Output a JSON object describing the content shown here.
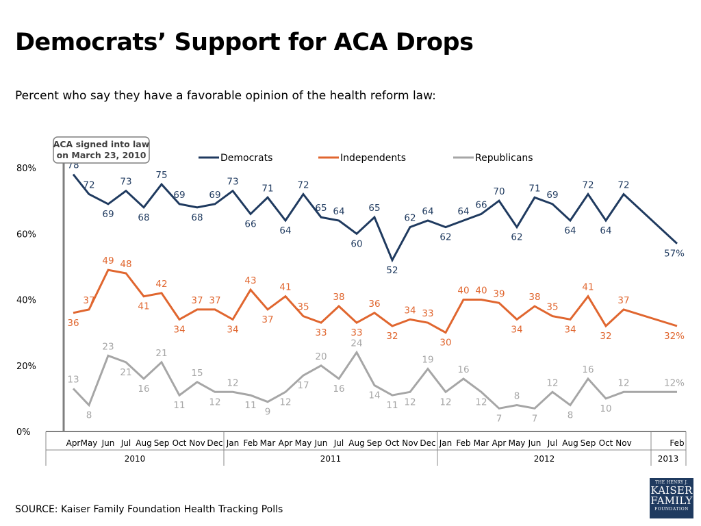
{
  "title": "Democrats’ Support for ACA Drops",
  "subtitle": "Percent who say they have a favorable opinion of the health reform law:",
  "source": "SOURCE: Kaiser Family Foundation Health Tracking Polls",
  "logo": {
    "line1": "THE HENRY J.",
    "line2": "KAISER",
    "line3": "FAMILY",
    "line4": "FOUNDATION"
  },
  "chart_data": {
    "type": "line",
    "ylim": [
      0,
      80
    ],
    "yticks": [
      "0%",
      "20%",
      "40%",
      "60%",
      "80%"
    ],
    "annotation": [
      "ACA signed into law",
      "on March 23, 2010"
    ],
    "year_labels": [
      "2010",
      "2011",
      "2012",
      "2013"
    ],
    "x": [
      "Apr",
      "May",
      "Jun",
      "Jul",
      "Aug",
      "Sep",
      "Oct",
      "Nov",
      "Dec",
      "Jan",
      "Feb",
      "Mar",
      "Apr",
      "May",
      "Jun",
      "Jul",
      "Aug",
      "Sep",
      "Oct",
      "Nov",
      "Dec",
      "Jan",
      "Feb",
      "Mar",
      "Apr",
      "May",
      "Jun",
      "Jul",
      "Aug",
      "Sep",
      "Oct",
      "Nov",
      "Feb"
    ],
    "series": [
      {
        "name": "Democrats",
        "color": "#1f3a5f",
        "values": [
          78,
          72,
          69,
          73,
          68,
          75,
          69,
          68,
          69,
          73,
          66,
          71,
          64,
          72,
          65,
          64,
          60,
          65,
          52,
          62,
          64,
          62,
          64,
          66,
          70,
          62,
          71,
          69,
          64,
          72,
          64,
          72,
          57
        ],
        "labels": [
          "78",
          "72",
          "69",
          "73",
          "68",
          "75",
          "69",
          "68",
          "69",
          "73",
          "66",
          "71",
          "64",
          "72",
          "65",
          "64",
          "60",
          "65",
          "52",
          "62",
          "64",
          "62",
          "64",
          "66",
          "70",
          "62",
          "71",
          "69",
          "64",
          "72",
          "64",
          "72",
          "57%"
        ]
      },
      {
        "name": "Independents",
        "color": "#e0662f",
        "values": [
          36,
          37,
          49,
          48,
          41,
          42,
          34,
          37,
          37,
          34,
          43,
          37,
          41,
          35,
          33,
          38,
          33,
          36,
          32,
          34,
          33,
          30,
          40,
          40,
          39,
          34,
          38,
          35,
          34,
          41,
          32,
          37,
          32
        ],
        "labels": [
          "36",
          "37",
          "49",
          "48",
          "41",
          "42",
          "34",
          "37",
          "37",
          "34",
          "43",
          "37",
          "41",
          "35",
          "33",
          "38",
          "33",
          "36",
          "32",
          "34",
          "33",
          "30",
          "40",
          "40",
          "39",
          "34",
          "38",
          "35",
          "34",
          "41",
          "32",
          "37",
          "32%"
        ]
      },
      {
        "name": "Republicans",
        "color": "#a6a6a6",
        "values": [
          13,
          8,
          23,
          21,
          16,
          21,
          11,
          15,
          12,
          12,
          11,
          9,
          12,
          17,
          20,
          16,
          24,
          14,
          11,
          12,
          19,
          12,
          16,
          12,
          7,
          8,
          7,
          12,
          8,
          16,
          10,
          12,
          12
        ],
        "labels": [
          "13",
          "8",
          "23",
          "21",
          "16",
          "21",
          "11",
          "15",
          "12",
          "12",
          "11",
          "9",
          "12",
          "17",
          "20",
          "16",
          "24",
          "14",
          "11",
          "12",
          "19",
          "12",
          "16",
          "12",
          "7",
          "8",
          "7",
          "12",
          "8",
          "16",
          "10",
          "12",
          "12%"
        ]
      }
    ]
  }
}
